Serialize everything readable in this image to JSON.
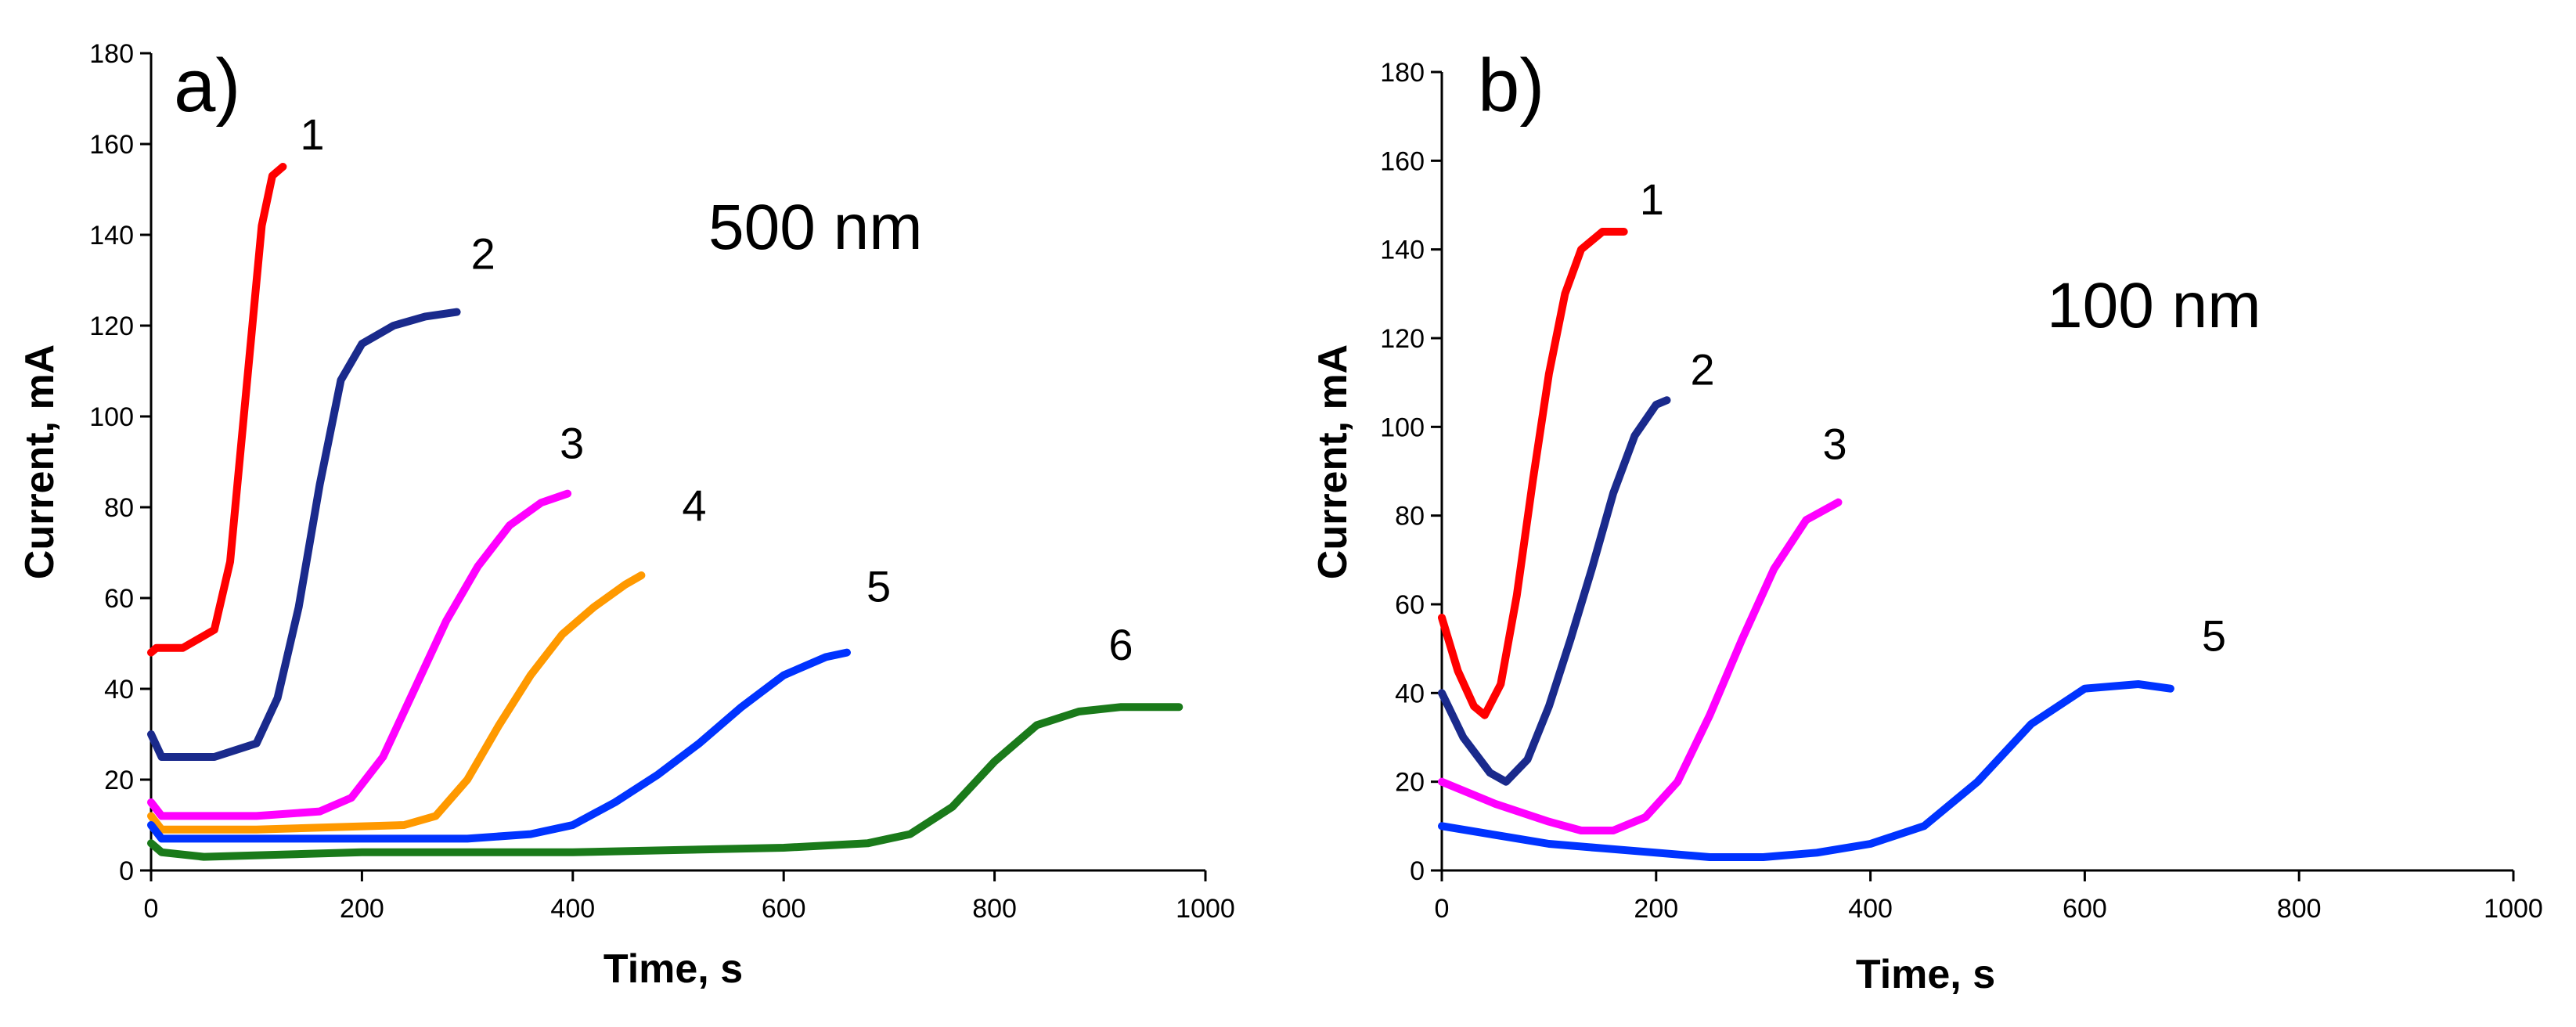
{
  "chart_data": [
    {
      "type": "line",
      "panel_label": "a)",
      "annotation": "500 nm",
      "xlabel": "Time, s",
      "ylabel": "Current, mA",
      "xlim": [
        0,
        1000
      ],
      "ylim": [
        0,
        180
      ],
      "xticks": [
        0,
        200,
        400,
        600,
        800,
        1000
      ],
      "yticks": [
        0,
        20,
        40,
        60,
        80,
        100,
        120,
        140,
        160,
        180
      ],
      "grid": false,
      "series": [
        {
          "name": "1",
          "color": "#ff0000",
          "x": [
            0,
            5,
            30,
            60,
            75,
            90,
            105,
            115,
            125
          ],
          "y": [
            48,
            49,
            49,
            53,
            68,
            105,
            142,
            153,
            155
          ]
        },
        {
          "name": "2",
          "color": "#1a2a8c",
          "x": [
            0,
            10,
            60,
            100,
            120,
            140,
            160,
            180,
            200,
            230,
            260,
            290
          ],
          "y": [
            30,
            25,
            25,
            28,
            38,
            58,
            85,
            108,
            116,
            120,
            122,
            123
          ]
        },
        {
          "name": "3",
          "color": "#ff00ff",
          "x": [
            0,
            10,
            100,
            160,
            190,
            220,
            250,
            280,
            310,
            340,
            370,
            395
          ],
          "y": [
            15,
            12,
            12,
            13,
            16,
            25,
            40,
            55,
            67,
            76,
            81,
            83
          ]
        },
        {
          "name": "4",
          "color": "#ff9900",
          "x": [
            0,
            10,
            100,
            240,
            270,
            300,
            330,
            360,
            390,
            420,
            450,
            465
          ],
          "y": [
            12,
            9,
            9,
            10,
            12,
            20,
            32,
            43,
            52,
            58,
            63,
            65
          ]
        },
        {
          "name": "5",
          "color": "#0033ff",
          "x": [
            0,
            10,
            100,
            300,
            360,
            400,
            440,
            480,
            520,
            560,
            600,
            640,
            660
          ],
          "y": [
            10,
            7,
            7,
            7,
            8,
            10,
            15,
            21,
            28,
            36,
            43,
            47,
            48
          ]
        },
        {
          "name": "6",
          "color": "#1a7a1a",
          "x": [
            0,
            10,
            50,
            200,
            400,
            600,
            680,
            720,
            760,
            800,
            840,
            880,
            920,
            960,
            975
          ],
          "y": [
            6,
            4,
            3,
            4,
            4,
            5,
            6,
            8,
            14,
            24,
            32,
            35,
            36,
            36,
            36
          ]
        }
      ]
    },
    {
      "type": "line",
      "panel_label": "b)",
      "annotation": "100 nm",
      "xlabel": "Time, s",
      "ylabel": "Current, mA",
      "xlim": [
        0,
        1000
      ],
      "ylim": [
        0,
        180
      ],
      "xticks": [
        0,
        200,
        400,
        600,
        800,
        1000
      ],
      "yticks": [
        0,
        20,
        40,
        60,
        80,
        100,
        120,
        140,
        160,
        180
      ],
      "grid": false,
      "series": [
        {
          "name": "1",
          "color": "#ff0000",
          "x": [
            0,
            15,
            30,
            40,
            55,
            70,
            85,
            100,
            115,
            130,
            150,
            170
          ],
          "y": [
            57,
            45,
            37,
            35,
            42,
            62,
            88,
            112,
            130,
            140,
            144,
            144
          ]
        },
        {
          "name": "2",
          "color": "#1a2a8c",
          "x": [
            0,
            20,
            45,
            60,
            80,
            100,
            120,
            140,
            160,
            180,
            200,
            210
          ],
          "y": [
            40,
            30,
            22,
            20,
            25,
            37,
            52,
            68,
            85,
            98,
            105,
            106
          ]
        },
        {
          "name": "3",
          "color": "#ff00ff",
          "x": [
            0,
            50,
            100,
            130,
            160,
            190,
            220,
            250,
            280,
            310,
            340,
            370
          ],
          "y": [
            20,
            15,
            11,
            9,
            9,
            12,
            20,
            35,
            52,
            68,
            79,
            83
          ]
        },
        {
          "name": "5",
          "color": "#0033ff",
          "x": [
            0,
            50,
            100,
            150,
            200,
            250,
            300,
            350,
            400,
            450,
            500,
            550,
            600,
            650,
            680
          ],
          "y": [
            10,
            8,
            6,
            5,
            4,
            3,
            3,
            4,
            6,
            10,
            20,
            33,
            41,
            42,
            41
          ]
        }
      ]
    }
  ]
}
